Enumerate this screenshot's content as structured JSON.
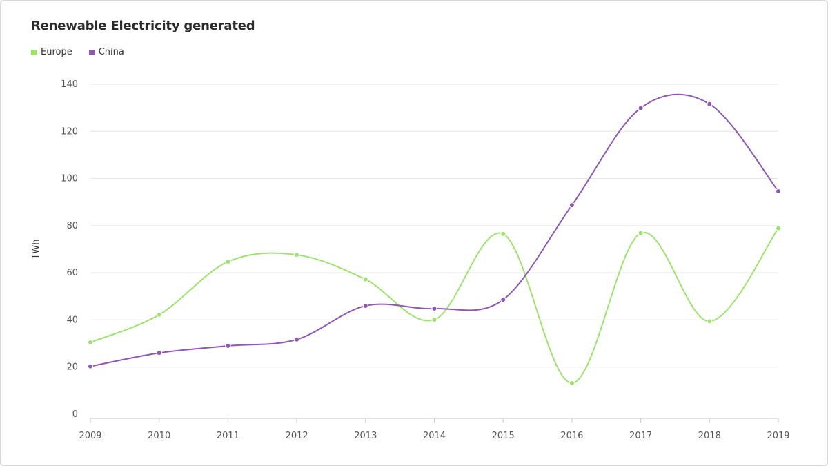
{
  "chart_data": {
    "type": "line",
    "title": "Renewable Electricity generated",
    "xlabel": "",
    "ylabel": "TWh",
    "categories": [
      "2009",
      "2010",
      "2011",
      "2012",
      "2013",
      "2014",
      "2015",
      "2016",
      "2017",
      "2018",
      "2019"
    ],
    "series": [
      {
        "name": "Europe",
        "color": "#9de46f",
        "values": [
          30.5,
          42.2,
          64.7,
          67.6,
          57.2,
          40.1,
          76.5,
          13.2,
          76.8,
          39.4,
          78.9
        ]
      },
      {
        "name": "China",
        "color": "#8e57b6",
        "values": [
          20.3,
          26.0,
          29.0,
          31.7,
          46.0,
          44.8,
          48.6,
          88.7,
          129.9,
          131.6,
          94.6
        ]
      }
    ],
    "ylim": [
      0,
      140
    ],
    "yticks": [
      0,
      20,
      40,
      60,
      80,
      100,
      120,
      140
    ],
    "grid": true,
    "legend_position": "top-left",
    "curve": "smooth"
  }
}
